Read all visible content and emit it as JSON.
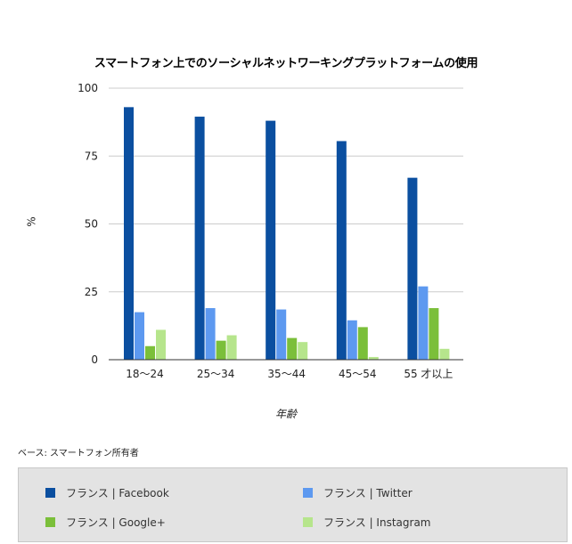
{
  "chart_data": {
    "type": "bar",
    "title": "スマートフォン上でのソーシャルネットワーキングプラットフォームの使用",
    "ylabel": "%",
    "xlabel": "年齢",
    "ylim": [
      0,
      100
    ],
    "yticks": [
      0,
      25,
      50,
      75,
      100
    ],
    "grid": true,
    "legend_position": "bottom",
    "categories": [
      "18～24",
      "25～34",
      "35～44",
      "45～54",
      "55 才以上"
    ],
    "series": [
      {
        "name": "フランス | Facebook",
        "color": "#0b4fa0",
        "values": [
          93,
          89.5,
          88,
          80.5,
          67
        ]
      },
      {
        "name": "フランス | Twitter",
        "color": "#5d99f0",
        "values": [
          17.5,
          19,
          18.5,
          14.5,
          27
        ]
      },
      {
        "name": "フランス | Google+",
        "color": "#7bbf3a",
        "values": [
          5,
          7,
          8,
          12,
          19
        ]
      },
      {
        "name": "フランス | Instagram",
        "color": "#b6e58c",
        "values": [
          11,
          9,
          6.5,
          1,
          4
        ]
      }
    ]
  },
  "footnote": "ベース: スマートフォン所有者"
}
